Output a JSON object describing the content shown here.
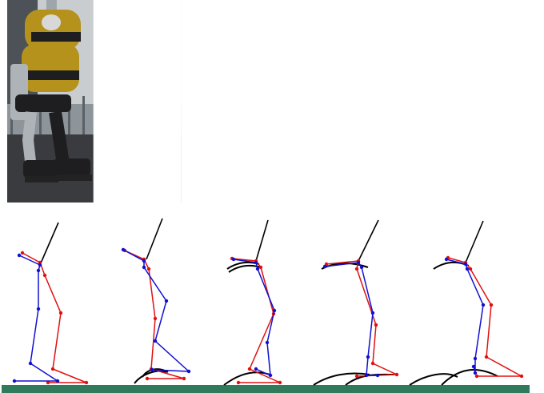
{
  "figure": {
    "frame_count": 6,
    "photo_style": {
      "floor_color": "#3a3b3f",
      "wall_color": "#c9cdd0",
      "robot_gold": "#b4921c",
      "robot_black": "#1e1e20",
      "robot_silver": "#aeb3b8"
    },
    "diagram_style": {
      "left_leg_color": "#e01010",
      "right_leg_color": "#1010d0",
      "trunk_color": "#000000",
      "trajectory_color": "#000000",
      "ground_color": "#2e7a5a"
    },
    "diagram_pose_count": 5
  }
}
